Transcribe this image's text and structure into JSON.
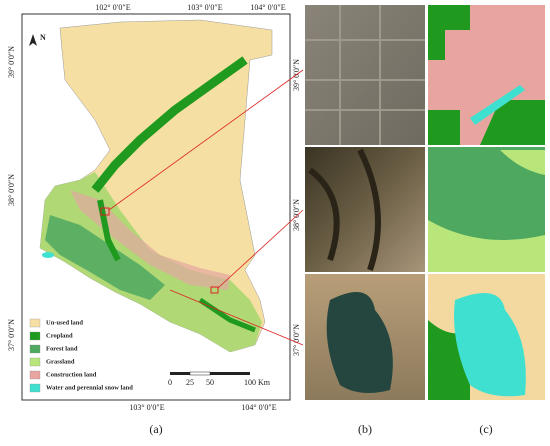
{
  "map": {
    "north": "N",
    "top_lon": [
      "102° 0′0″E",
      "103° 0′0″E",
      "104° 0′0″E"
    ],
    "bottom_lon": [
      "103° 0′0″E",
      "104° 0′0″E"
    ],
    "left_lat": [
      "39° 0′0″N",
      "38° 0′0″N",
      "37° 0′0″N"
    ],
    "legend": [
      {
        "label": "Un-used land",
        "color": "#f6dfa2"
      },
      {
        "label": "Cropland",
        "color": "#1f9a1f"
      },
      {
        "label": "Forest land",
        "color": "#4fa860"
      },
      {
        "label": "Grassland",
        "color": "#b8e67a"
      },
      {
        "label": "Construction land",
        "color": "#e8a5a0"
      },
      {
        "label": "Water and perennial snow land",
        "color": "#3fe0d0"
      }
    ],
    "scale": {
      "labels": [
        "0",
        "25",
        "50",
        "100"
      ],
      "unit": "Km"
    }
  },
  "images": {
    "lat": [
      "39° 0′0″N",
      "38° 0′0″N",
      "37° 0′0″N"
    ]
  },
  "panels": [
    "(a)",
    "(b)",
    "(c)"
  ]
}
